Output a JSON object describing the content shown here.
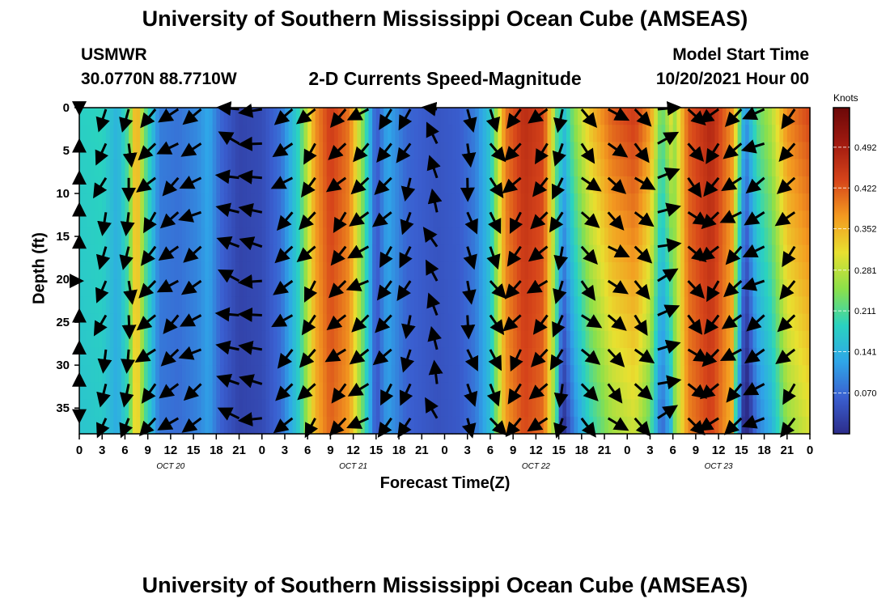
{
  "page": {
    "title_top": "University of Southern Mississippi Ocean Cube (AMSEAS)",
    "title_bottom": "University of Southern Mississippi Ocean Cube (AMSEAS)",
    "station": "USMWR",
    "coords": "30.0770N  88.7710W",
    "model_start_label": "Model Start Time",
    "model_start_value": "10/20/2021 Hour 00"
  },
  "chart_data": {
    "type": "heatmap",
    "title": "2-D Currents Speed-Magnitude",
    "xlabel": "Forecast Time(Z)",
    "ylabel": "Depth (ft)",
    "y_ticks": [
      "0",
      "5",
      "10",
      "15",
      "20",
      "25",
      "30",
      "35"
    ],
    "y_tick_values": [
      0,
      5,
      10,
      15,
      20,
      25,
      30,
      35
    ],
    "ylim": [
      0,
      38
    ],
    "y_inverted": true,
    "x_ticks": [
      "0",
      "3",
      "6",
      "9",
      "12",
      "15",
      "18",
      "21",
      "0",
      "3",
      "6",
      "9",
      "12",
      "15",
      "18",
      "21",
      "0",
      "3",
      "6",
      "9",
      "12",
      "15",
      "18",
      "21",
      "0",
      "3",
      "6",
      "9",
      "12",
      "15",
      "18",
      "21",
      "0"
    ],
    "x_hours": [
      0,
      3,
      6,
      9,
      12,
      15,
      18,
      21,
      24,
      27,
      30,
      33,
      36,
      39,
      42,
      45,
      48,
      51,
      54,
      57,
      60,
      63,
      66,
      69,
      72,
      75,
      78,
      81,
      84,
      87,
      90,
      93,
      96
    ],
    "xlim_hours": [
      0,
      96
    ],
    "day_labels": [
      {
        "label": "OCT 20",
        "hour": 12
      },
      {
        "label": "OCT 21",
        "hour": 36
      },
      {
        "label": "OCT 22",
        "hour": 60
      },
      {
        "label": "OCT 23",
        "hour": 84
      }
    ],
    "colorbar": {
      "unit": "Knots",
      "ticks": [
        "0.492",
        "0.422",
        "0.352",
        "0.281",
        "0.211",
        "0.141",
        "0.070"
      ],
      "tick_values": [
        0.492,
        0.422,
        0.352,
        0.281,
        0.211,
        0.141,
        0.07
      ],
      "range": [
        0.0,
        0.56
      ],
      "colors": [
        "#2c2c8a",
        "#3a5fd0",
        "#2fa6e8",
        "#2ad3c0",
        "#8be04a",
        "#e8e030",
        "#f39a20",
        "#d6441a",
        "#a11a10",
        "#6b0808"
      ]
    },
    "speed_profile_by_hour": [
      {
        "hour": 0,
        "speed": 0.18
      },
      {
        "hour": 3,
        "speed": 0.19
      },
      {
        "hour": 5,
        "speed": 0.14
      },
      {
        "hour": 6.5,
        "speed": 0.22
      },
      {
        "hour": 7.5,
        "speed": 0.38
      },
      {
        "hour": 8.5,
        "speed": 0.24
      },
      {
        "hour": 10.5,
        "speed": 0.09
      },
      {
        "hour": 13,
        "speed": 0.08
      },
      {
        "hour": 15.5,
        "speed": 0.1
      },
      {
        "hour": 17,
        "speed": 0.13
      },
      {
        "hour": 18.5,
        "speed": 0.07
      },
      {
        "hour": 21,
        "speed": 0.03
      },
      {
        "hour": 24,
        "speed": 0.04
      },
      {
        "hour": 26.5,
        "speed": 0.08
      },
      {
        "hour": 29,
        "speed": 0.2
      },
      {
        "hour": 31,
        "speed": 0.38
      },
      {
        "hour": 33,
        "speed": 0.45
      },
      {
        "hour": 35.5,
        "speed": 0.4
      },
      {
        "hour": 37.5,
        "speed": 0.22
      },
      {
        "hour": 39,
        "speed": 0.05
      },
      {
        "hour": 40.5,
        "speed": 0.13
      },
      {
        "hour": 43,
        "speed": 0.07
      },
      {
        "hour": 47,
        "speed": 0.05
      },
      {
        "hour": 50,
        "speed": 0.06
      },
      {
        "hour": 52,
        "speed": 0.09
      },
      {
        "hour": 54,
        "speed": 0.17
      },
      {
        "hour": 56,
        "speed": 0.4
      },
      {
        "hour": 58.5,
        "speed": 0.47
      },
      {
        "hour": 61,
        "speed": 0.44
      },
      {
        "hour": 62.5,
        "speed": 0.26
      },
      {
        "hour": 63.5,
        "speed": 0.07
      },
      {
        "hour": 65,
        "speed": 0.17
      },
      {
        "hour": 67,
        "speed": 0.26
      },
      {
        "hour": 70,
        "speed": 0.34
      },
      {
        "hour": 73,
        "speed": 0.37
      },
      {
        "hour": 75,
        "speed": 0.3
      },
      {
        "hour": 76.5,
        "speed": 0.14
      },
      {
        "hour": 78,
        "speed": 0.24
      },
      {
        "hour": 80,
        "speed": 0.42
      },
      {
        "hour": 83,
        "speed": 0.48
      },
      {
        "hour": 86,
        "speed": 0.37
      },
      {
        "hour": 87.5,
        "speed": 0.1
      },
      {
        "hour": 89,
        "speed": 0.22
      },
      {
        "hour": 91,
        "speed": 0.28
      },
      {
        "hour": 93,
        "speed": 0.39
      },
      {
        "hour": 96,
        "speed": 0.44
      }
    ],
    "vectors_note_free": true,
    "vector_columns_hours": [
      0,
      3.5,
      6.5,
      10,
      13,
      16,
      21,
      24,
      28,
      31,
      35,
      38,
      41,
      43.5,
      47,
      51,
      54,
      58,
      61.5,
      63.5,
      66,
      69.5,
      73,
      76,
      80,
      84,
      87,
      90,
      94
    ],
    "vector_depths": [
      0,
      4,
      8,
      12,
      16,
      20,
      24,
      28,
      32,
      36
    ],
    "vector_direction_deg_by_column": [
      -170,
      110,
      95,
      135,
      140,
      150,
      -160,
      -175,
      140,
      130,
      135,
      145,
      130,
      115,
      -110,
      75,
      60,
      130,
      135,
      110,
      45,
      40,
      45,
      -20,
      45,
      135,
      140,
      150,
      135
    ]
  }
}
